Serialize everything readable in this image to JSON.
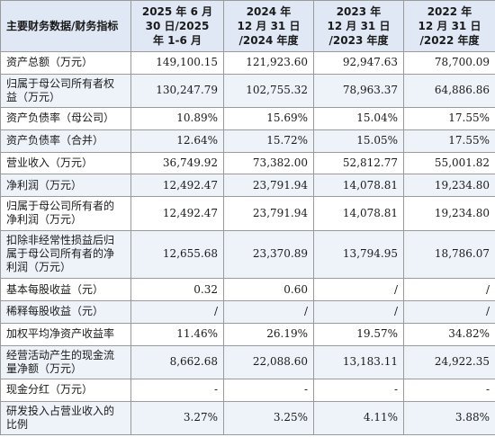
{
  "table": {
    "headers": [
      "主要财务数据/财务指标",
      "2025 年 6 月\n30 日/2025\n年 1-6 月",
      "2024 年\n12 月 31 日\n/2024 年度",
      "2023 年\n12 月 31 日\n/2023 年度",
      "2022 年\n12 月 31 日\n/2022 年度"
    ],
    "rows": [
      {
        "label": "资产总额（万元）",
        "values": [
          "149,100.15",
          "121,923.60",
          "92,947.63",
          "78,700.09"
        ]
      },
      {
        "label": "归属于母公司所有者权\n益（万元）",
        "values": [
          "130,247.79",
          "102,755.32",
          "78,963.37",
          "64,886.86"
        ]
      },
      {
        "label": "资产负债率（母公司）",
        "values": [
          "10.89%",
          "15.69%",
          "15.04%",
          "17.55%"
        ]
      },
      {
        "label": "资产负债率（合并）",
        "values": [
          "12.64%",
          "15.72%",
          "15.05%",
          "17.55%"
        ]
      },
      {
        "label": "营业收入（万元）",
        "values": [
          "36,749.92",
          "73,382.00",
          "52,812.77",
          "55,001.82"
        ]
      },
      {
        "label": "净利润（万元）",
        "values": [
          "12,492.47",
          "23,791.94",
          "14,078.81",
          "19,234.80"
        ]
      },
      {
        "label": "归属于母公司所有者的\n净利润（万元）",
        "values": [
          "12,492.47",
          "23,791.94",
          "14,078.81",
          "19,234.80"
        ]
      },
      {
        "label": "扣除非经常性损益后归\n属于母公司所有者的净\n利润（万元）",
        "values": [
          "12,655.68",
          "23,370.89",
          "13,794.95",
          "18,786.07"
        ]
      },
      {
        "label": "基本每股收益（元）",
        "values": [
          "0.32",
          "0.60",
          "/",
          "/"
        ]
      },
      {
        "label": "稀释每股收益（元）",
        "values": [
          "/",
          "/",
          "/",
          "/"
        ]
      },
      {
        "label": "加权平均净资产收益率",
        "values": [
          "11.46%",
          "26.19%",
          "19.57%",
          "34.82%"
        ]
      },
      {
        "label": "经营活动产生的现金流\n量净额（万元）",
        "values": [
          "8,662.68",
          "22,088.60",
          "13,183.11",
          "24,922.35"
        ]
      },
      {
        "label": "现金分红（万元）",
        "values": [
          "-",
          "-",
          "-",
          "-"
        ]
      },
      {
        "label": "研发投入占营业收入的\n比例",
        "values": [
          "3.27%",
          "3.25%",
          "4.11%",
          "3.88%"
        ]
      }
    ]
  }
}
